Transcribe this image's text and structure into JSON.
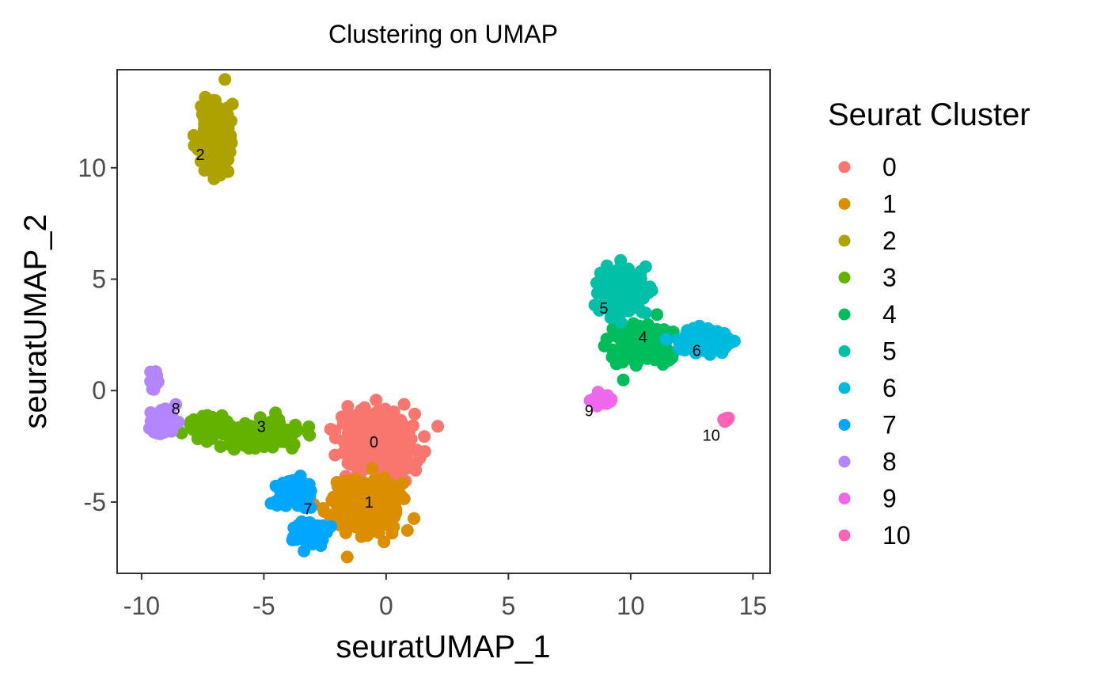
{
  "chart_data": {
    "type": "scatter",
    "title": "Clustering on UMAP",
    "xlabel": "seuratUMAP_1",
    "ylabel": "seuratUMAP_2",
    "xlim": [
      -11,
      15.7
    ],
    "ylim": [
      -8.2,
      14.4
    ],
    "xticks": [
      -10,
      -5,
      0,
      5,
      10,
      15
    ],
    "yticks": [
      -5,
      0,
      5,
      10
    ],
    "xtick_labels": [
      "-10",
      "-5",
      "0",
      "5",
      "10",
      "15"
    ],
    "ytick_labels": [
      "-5",
      "0",
      "5",
      "10"
    ],
    "grid": false,
    "legend": {
      "title": "Seurat Cluster",
      "position": "right"
    },
    "series": [
      {
        "name": "0",
        "color": "#F8766D",
        "label_pos": [
          -0.5,
          -2.3
        ]
      },
      {
        "name": "1",
        "color": "#DB8E00",
        "label_pos": [
          -0.7,
          -5.0
        ]
      },
      {
        "name": "2",
        "color": "#AEA200",
        "label_pos": [
          -7.6,
          10.6
        ]
      },
      {
        "name": "3",
        "color": "#64B200",
        "label_pos": [
          -5.1,
          -1.6
        ]
      },
      {
        "name": "4",
        "color": "#00BD5C",
        "label_pos": [
          10.5,
          2.4
        ]
      },
      {
        "name": "5",
        "color": "#00C1A7",
        "label_pos": [
          8.9,
          3.7
        ]
      },
      {
        "name": "6",
        "color": "#00BADE",
        "label_pos": [
          12.7,
          1.8
        ]
      },
      {
        "name": "7",
        "color": "#00A6FF",
        "label_pos": [
          -3.2,
          -5.3
        ]
      },
      {
        "name": "8",
        "color": "#B385FF",
        "label_pos": [
          -8.6,
          -0.8
        ]
      },
      {
        "name": "9",
        "color": "#EF67EB",
        "label_pos": [
          8.3,
          -0.9
        ]
      },
      {
        "name": "10",
        "color": "#FF63B6",
        "label_pos": [
          13.3,
          -2.0
        ]
      }
    ]
  }
}
